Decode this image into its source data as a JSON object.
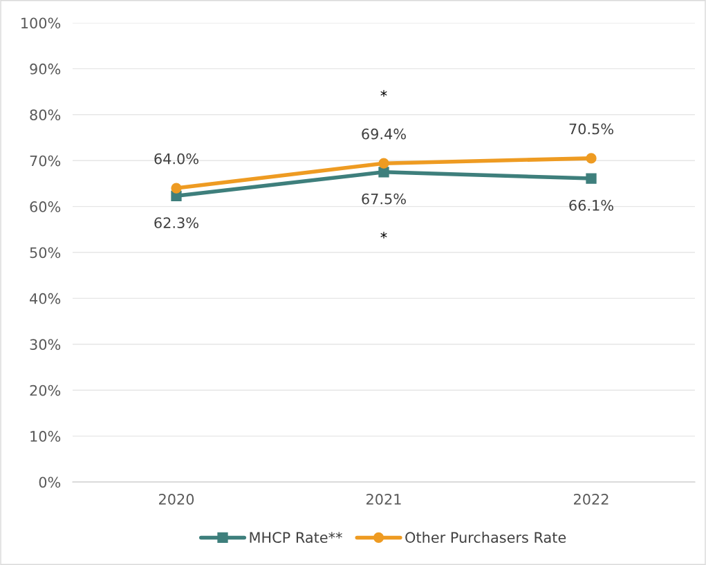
{
  "chart_data": {
    "type": "line",
    "categories": [
      "2020",
      "2021",
      "2022"
    ],
    "series": [
      {
        "name": "MHCP Rate**",
        "color": "#3e7f7c",
        "marker": "square",
        "values": [
          62.3,
          67.5,
          66.1
        ],
        "value_labels": [
          "62.3%",
          "67.5%",
          "66.1%"
        ]
      },
      {
        "name": "Other Purchasers Rate",
        "color": "#ee9b22",
        "marker": "circle",
        "values": [
          64.0,
          69.4,
          70.5
        ],
        "value_labels": [
          "64.0%",
          "69.4%",
          "70.5%"
        ]
      }
    ],
    "ylim": [
      0,
      100
    ],
    "yticks": [
      {
        "value": 0,
        "label": "0%"
      },
      {
        "value": 10,
        "label": "10%"
      },
      {
        "value": 20,
        "label": "20%"
      },
      {
        "value": 30,
        "label": "30%"
      },
      {
        "value": 40,
        "label": "40%"
      },
      {
        "value": 50,
        "label": "50%"
      },
      {
        "value": 60,
        "label": "60%"
      },
      {
        "value": 70,
        "label": "70%"
      },
      {
        "value": 80,
        "label": "80%"
      },
      {
        "value": 90,
        "label": "90%"
      },
      {
        "value": 100,
        "label": "100%"
      }
    ],
    "grid": "y",
    "legend": "bottom",
    "annotations": [
      "*",
      "*"
    ]
  }
}
